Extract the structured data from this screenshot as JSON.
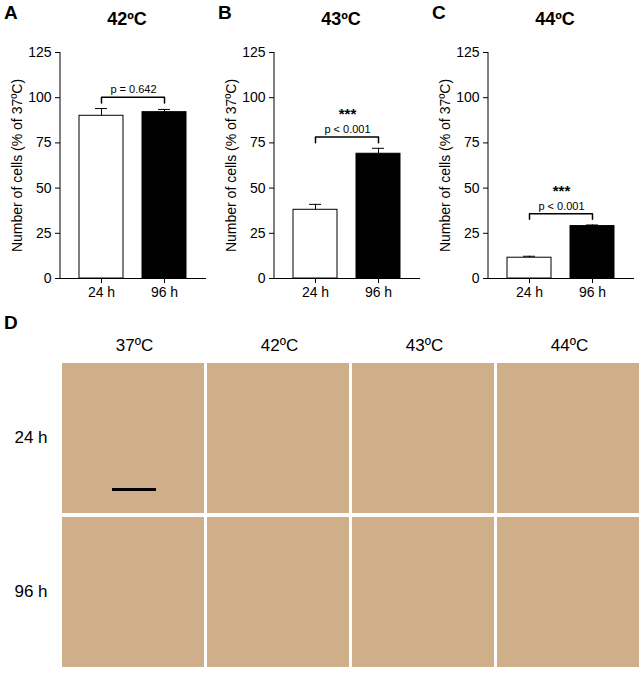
{
  "chart_data": [
    {
      "type": "bar",
      "panel_label": "A",
      "title": "42ºC",
      "ylabel": "Number of cells (% of 37ºC)",
      "categories": [
        "24 h",
        "96 h"
      ],
      "values": [
        90,
        92
      ],
      "errors": [
        4,
        1.5
      ],
      "colors": [
        "#ffffff",
        "#000000"
      ],
      "ylim": [
        0,
        125
      ],
      "yticks": [
        0,
        25,
        50,
        75,
        100,
        125
      ],
      "annotations": [
        "p = 0.642"
      ]
    },
    {
      "type": "bar",
      "panel_label": "B",
      "title": "43ºC",
      "ylabel": "Number of cells (% of 37ºC)",
      "categories": [
        "24 h",
        "96 h"
      ],
      "values": [
        38,
        69
      ],
      "errors": [
        3,
        3
      ],
      "colors": [
        "#ffffff",
        "#000000"
      ],
      "ylim": [
        0,
        125
      ],
      "yticks": [
        0,
        25,
        50,
        75,
        100,
        125
      ],
      "annotations": [
        "***",
        "p < 0.001"
      ]
    },
    {
      "type": "bar",
      "panel_label": "C",
      "title": "44ºC",
      "ylabel": "Number of cells (% of 37ºC)",
      "categories": [
        "24 h",
        "96 h"
      ],
      "values": [
        11.5,
        29
      ],
      "errors": [
        0.8,
        0.6
      ],
      "colors": [
        "#ffffff",
        "#000000"
      ],
      "ylim": [
        0,
        125
      ],
      "yticks": [
        0,
        25,
        50,
        75,
        100,
        125
      ],
      "annotations": [
        "***",
        "p < 0.001"
      ]
    }
  ],
  "panel_d": {
    "label": "D",
    "columns": [
      "37ºC",
      "42ºC",
      "43ºC",
      "44ºC"
    ],
    "rows": [
      "24 h",
      "96 h"
    ]
  }
}
